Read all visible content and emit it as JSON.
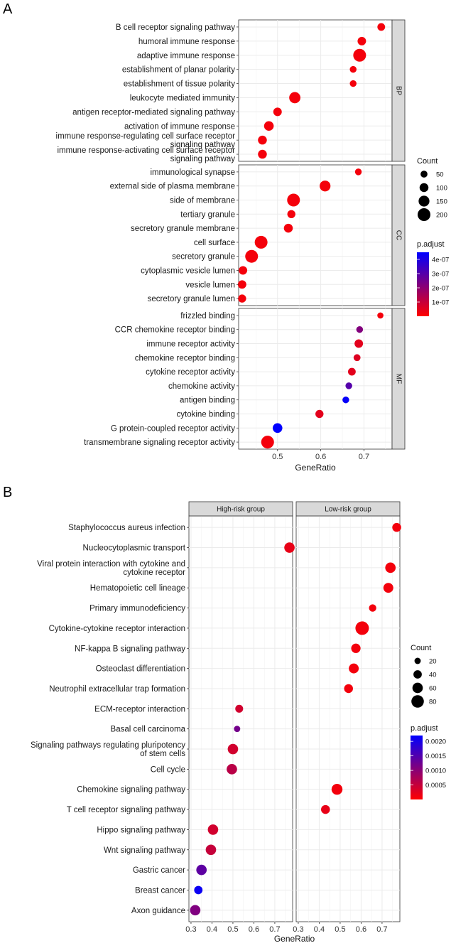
{
  "colors": {
    "low": "#ff0000",
    "high": "#0000ff",
    "strip": "#d9d9d9",
    "grid": "#ebebeb",
    "border": "#333333"
  },
  "chart_data": [
    {
      "panel_label": "A",
      "type": "scatter",
      "subtype": "dotplot",
      "xlabel": "GeneRatio",
      "xlim": [
        0.41,
        0.765
      ],
      "xticks": [
        "0.5",
        "0.6",
        "0.7"
      ],
      "size_legend": {
        "title": "Count",
        "values": [
          50,
          100,
          150,
          200
        ]
      },
      "color_legend": {
        "title": "p.adjust",
        "ticks": [
          "4e-07",
          "3e-07",
          "2e-07",
          "1e-07"
        ],
        "range": [
          0,
          4.5e-07
        ]
      },
      "facets": [
        {
          "name": "BP",
          "terms": [
            {
              "label": "B cell receptor signaling pathway",
              "x": 0.74,
              "count": 70,
              "p": 2e-08
            },
            {
              "label": "humoral immune response",
              "x": 0.695,
              "count": 90,
              "p": 2e-08
            },
            {
              "label": "adaptive immune response",
              "x": 0.69,
              "count": 200,
              "p": 2e-08
            },
            {
              "label": "establishment of planar polarity",
              "x": 0.675,
              "count": 45,
              "p": 2e-08
            },
            {
              "label": "establishment of tissue polarity",
              "x": 0.675,
              "count": 45,
              "p": 2e-08
            },
            {
              "label": "leukocyte mediated immunity",
              "x": 0.54,
              "count": 160,
              "p": 2e-08
            },
            {
              "label": "antigen receptor-mediated signaling pathway",
              "x": 0.5,
              "count": 90,
              "p": 2e-08
            },
            {
              "label": "activation of immune response",
              "x": 0.48,
              "count": 120,
              "p": 2e-08
            },
            {
              "label": "immune response-regulating cell surface receptor signaling pathway",
              "x": 0.465,
              "count": 100,
              "p": 2e-08
            },
            {
              "label": "immune response-activating cell surface receptor signaling pathway",
              "x": 0.465,
              "count": 100,
              "p": 2e-08
            }
          ]
        },
        {
          "name": "CC",
          "terms": [
            {
              "label": "immunological synapse",
              "x": 0.687,
              "count": 45,
              "p": 2e-08
            },
            {
              "label": "external side of plasma membrane",
              "x": 0.61,
              "count": 150,
              "p": 2e-08
            },
            {
              "label": "side of membrane",
              "x": 0.537,
              "count": 200,
              "p": 2e-08
            },
            {
              "label": "tertiary granule",
              "x": 0.532,
              "count": 80,
              "p": 2e-08
            },
            {
              "label": "secretory granule membrane",
              "x": 0.525,
              "count": 100,
              "p": 2e-08
            },
            {
              "label": "cell surface",
              "x": 0.462,
              "count": 200,
              "p": 2e-08
            },
            {
              "label": "secretory granule",
              "x": 0.44,
              "count": 200,
              "p": 2e-08
            },
            {
              "label": "cytoplasmic vesicle lumen",
              "x": 0.42,
              "count": 90,
              "p": 2e-08
            },
            {
              "label": "vesicle lumen",
              "x": 0.418,
              "count": 90,
              "p": 2e-08
            },
            {
              "label": "secretory granule lumen",
              "x": 0.418,
              "count": 80,
              "p": 2e-08
            }
          ]
        },
        {
          "name": "MF",
          "terms": [
            {
              "label": "frizzled binding",
              "x": 0.738,
              "count": 30,
              "p": 2e-08
            },
            {
              "label": "CCR chemokine receptor binding",
              "x": 0.69,
              "count": 45,
              "p": 2.2e-07
            },
            {
              "label": "immune receptor activity",
              "x": 0.688,
              "count": 90,
              "p": 5e-08
            },
            {
              "label": "chemokine receptor binding",
              "x": 0.684,
              "count": 50,
              "p": 6e-08
            },
            {
              "label": "cytokine receptor activity",
              "x": 0.672,
              "count": 70,
              "p": 5e-08
            },
            {
              "label": "chemokine activity",
              "x": 0.665,
              "count": 45,
              "p": 3e-07
            },
            {
              "label": "antigen binding",
              "x": 0.658,
              "count": 45,
              "p": 4.4e-07
            },
            {
              "label": "cytokine binding",
              "x": 0.597,
              "count": 80,
              "p": 5e-08
            },
            {
              "label": "G protein-coupled receptor activity",
              "x": 0.5,
              "count": 120,
              "p": 4.5e-07
            },
            {
              "label": "transmembrane signaling receptor activity",
              "x": 0.477,
              "count": 200,
              "p": 2e-08
            }
          ]
        }
      ]
    },
    {
      "panel_label": "B",
      "type": "scatter",
      "subtype": "dotplot",
      "xlabel": "GeneRatio",
      "xlim": [
        0.29,
        0.785
      ],
      "xticks": [
        "0.3",
        "0.4",
        "0.5",
        "0.6",
        "0.7"
      ],
      "size_legend": {
        "title": "Count",
        "values": [
          20,
          40,
          60,
          80
        ]
      },
      "color_legend": {
        "title": "p.adjust",
        "ticks": [
          "0.0020",
          "0.0015",
          "0.0010",
          "0.0005"
        ],
        "range": [
          0,
          0.0022
        ]
      },
      "terms": [
        "Staphylococcus aureus infection",
        "Nucleocytoplasmic transport",
        "Viral protein interaction with cytokine and cytokine receptor",
        "Hematopoietic cell lineage",
        "Primary immunodeficiency",
        "Cytokine-cytokine receptor interaction",
        "NF-kappa B signaling pathway",
        "Osteoclast differentiation",
        "Neutrophil extracellular trap formation",
        "ECM-receptor interaction",
        "Basal cell carcinoma",
        "Signaling pathways regulating pluripotency of stem cells",
        "Cell cycle",
        "Chemokine signaling pathway",
        "T cell receptor signaling pathway",
        "Hippo signaling pathway",
        "Wnt signaling pathway",
        "Gastric cancer",
        "Breast cancer",
        "Axon guidance"
      ],
      "facets": [
        {
          "name": "High-risk group",
          "points": [
            {
              "term": "Nucleocytoplasmic transport",
              "x": 0.77,
              "count": 60,
              "p": 0.0002
            },
            {
              "term": "ECM-receptor interaction",
              "x": 0.53,
              "count": 35,
              "p": 0.0004
            },
            {
              "term": "Basal cell carcinoma",
              "x": 0.52,
              "count": 20,
              "p": 0.0012
            },
            {
              "term": "Signaling pathways regulating pluripotency of stem cells",
              "x": 0.5,
              "count": 60,
              "p": 0.0004
            },
            {
              "term": "Cell cycle",
              "x": 0.495,
              "count": 60,
              "p": 0.0006
            },
            {
              "term": "Hippo signaling pathway",
              "x": 0.405,
              "count": 60,
              "p": 0.0004
            },
            {
              "term": "Wnt signaling pathway",
              "x": 0.395,
              "count": 60,
              "p": 0.0005
            },
            {
              "term": "Gastric cancer",
              "x": 0.35,
              "count": 60,
              "p": 0.0014
            },
            {
              "term": "Breast cancer",
              "x": 0.335,
              "count": 40,
              "p": 0.0021
            },
            {
              "term": "Axon guidance",
              "x": 0.32,
              "count": 60,
              "p": 0.0011
            }
          ]
        },
        {
          "name": "Low-risk group",
          "points": [
            {
              "term": "Staphylococcus aureus infection",
              "x": 0.77,
              "count": 45,
              "p": 0.0001
            },
            {
              "term": "Viral protein interaction with cytokine and cytokine receptor",
              "x": 0.74,
              "count": 60,
              "p": 0.0001
            },
            {
              "term": "Hematopoietic cell lineage",
              "x": 0.73,
              "count": 55,
              "p": 0.0001
            },
            {
              "term": "Primary immunodeficiency",
              "x": 0.655,
              "count": 30,
              "p": 0.0001
            },
            {
              "term": "Cytokine-cytokine receptor interaction",
              "x": 0.605,
              "count": 90,
              "p": 0.0001
            },
            {
              "term": "NF-kappa B signaling pathway",
              "x": 0.575,
              "count": 50,
              "p": 0.0001
            },
            {
              "term": "Osteoclast differentiation",
              "x": 0.565,
              "count": 55,
              "p": 0.0001
            },
            {
              "term": "Neutrophil extracellular trap formation",
              "x": 0.54,
              "count": 45,
              "p": 0.0001
            },
            {
              "term": "Chemokine signaling pathway",
              "x": 0.485,
              "count": 65,
              "p": 0.0001
            },
            {
              "term": "T cell receptor signaling pathway",
              "x": 0.43,
              "count": 45,
              "p": 0.0002
            }
          ]
        }
      ]
    }
  ]
}
